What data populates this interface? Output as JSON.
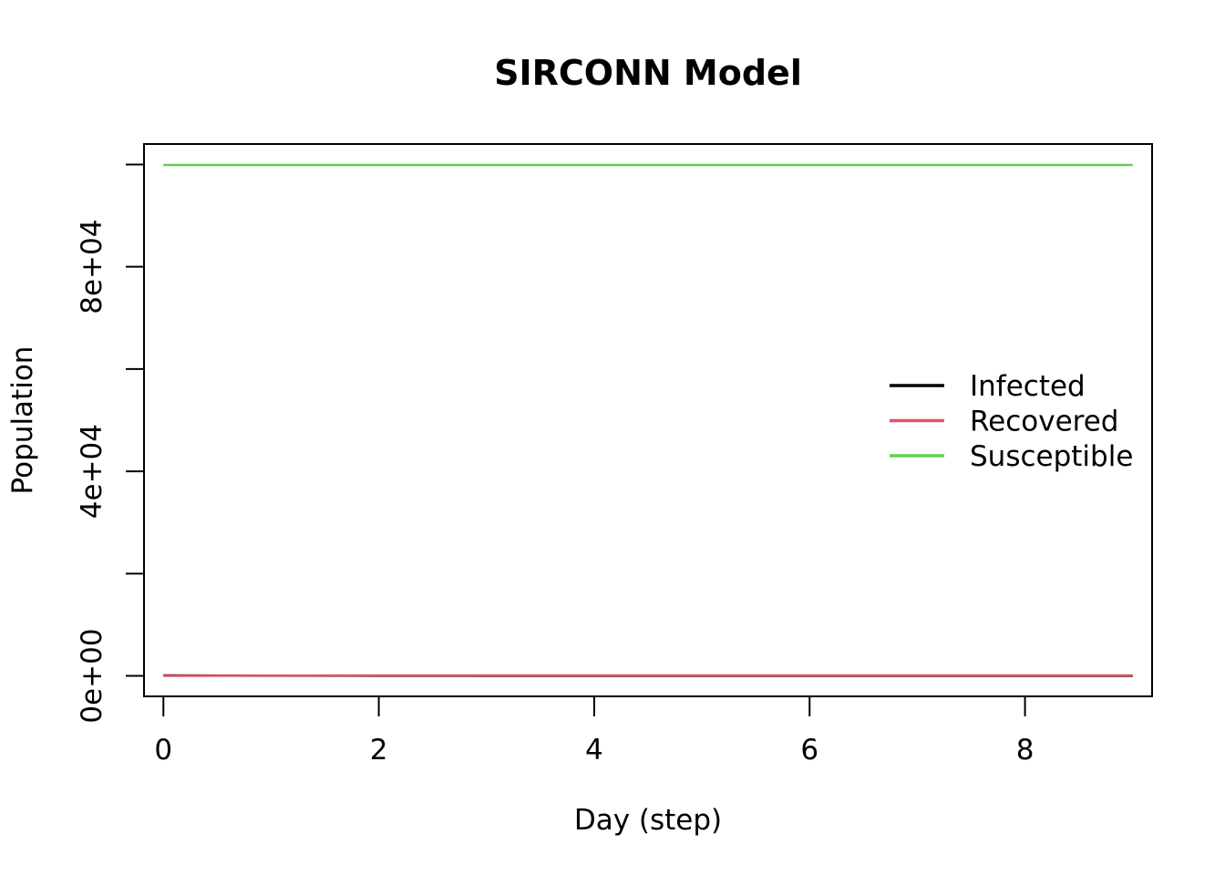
{
  "chart_data": {
    "type": "line",
    "title": "SIRCONN Model",
    "xlabel": "Day (step)",
    "ylabel": "Population",
    "x": [
      0,
      1,
      2,
      3,
      4,
      5,
      6,
      7,
      8,
      9
    ],
    "xlim": [
      -0.18,
      9.18
    ],
    "ylim": [
      -4000,
      104000
    ],
    "x_ticks": [
      0,
      2,
      4,
      6,
      8
    ],
    "x_tick_labels": [
      "0",
      "2",
      "4",
      "6",
      "8"
    ],
    "y_ticks": [
      0,
      20000,
      40000,
      60000,
      80000,
      100000
    ],
    "y_tick_labels": [
      "0e+00",
      "",
      "4e+04",
      "",
      "8e+04",
      ""
    ],
    "grid": false,
    "legend_position": "right",
    "series": [
      {
        "name": "Infected",
        "color": "#000000",
        "values": [
          100,
          40,
          20,
          10,
          5,
          3,
          2,
          1,
          1,
          0
        ]
      },
      {
        "name": "Recovered",
        "color": "#DF536B",
        "values": [
          0,
          60,
          80,
          90,
          95,
          97,
          98,
          99,
          99,
          100
        ]
      },
      {
        "name": "Susceptible",
        "color": "#61D04F",
        "values": [
          99900,
          99900,
          99900,
          99900,
          99900,
          99900,
          99900,
          99900,
          99900,
          99900
        ]
      }
    ]
  }
}
